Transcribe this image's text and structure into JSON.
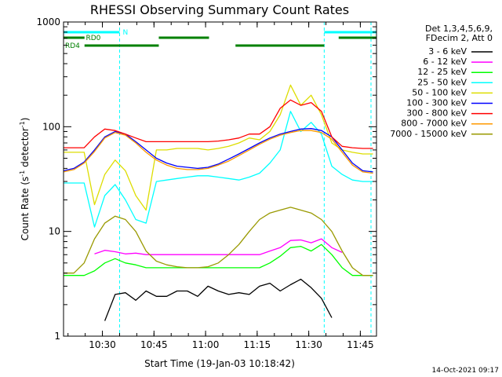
{
  "chart_data": {
    "type": "line",
    "title": "RHESSI Observing Summary Count Rates",
    "xlabel": "Start Time (19-Jan-03 10:18:42)",
    "ylabel_main": "Count Rate (s",
    "ylabel_sup": "-1",
    "ylabel_tail": " detector",
    "ylabel_sup2": "-1",
    "ylabel_end": ")",
    "yscale": "log",
    "ylim": [
      1,
      1000
    ],
    "xlim_minutes": [
      0,
      91
    ],
    "x_ticks": [
      {
        "label": "10:30",
        "value": 11.3
      },
      {
        "label": "10:45",
        "value": 26.3
      },
      {
        "label": "11:00",
        "value": 41.3
      },
      {
        "label": "11:15",
        "value": 56.3
      },
      {
        "label": "11:30",
        "value": 71.3
      },
      {
        "label": "11:45",
        "value": 86.3
      }
    ],
    "y_ticks": [
      {
        "label": "1",
        "value": 1
      },
      {
        "label": "10",
        "value": 10
      },
      {
        "label": "100",
        "value": 100
      },
      {
        "label": "1000",
        "value": 1000
      }
    ],
    "legend_header": [
      "Det 1,3,4,5,6,9,",
      "FDecim 2, Att 0"
    ],
    "series": [
      {
        "name": "3 - 6 keV",
        "color": "#000000",
        "x": [
          0,
          3,
          6,
          9,
          12,
          15,
          18,
          21,
          24,
          27,
          30,
          33,
          36,
          39,
          42,
          45,
          48,
          51,
          54,
          57,
          60,
          63,
          66,
          69,
          72,
          75,
          78,
          81,
          84,
          87,
          90
        ],
        "y": [
          null,
          null,
          null,
          null,
          1.4,
          2.5,
          2.6,
          2.2,
          2.7,
          2.4,
          2.4,
          2.7,
          2.7,
          2.4,
          3.0,
          2.7,
          2.5,
          2.6,
          2.5,
          3.0,
          3.2,
          2.7,
          3.1,
          3.5,
          2.9,
          2.3,
          1.5,
          null,
          null,
          null,
          null
        ]
      },
      {
        "name": "6 - 12 keV",
        "color": "#ff00ff",
        "x": [
          0,
          3,
          6,
          9,
          12,
          15,
          18,
          21,
          24,
          27,
          30,
          33,
          36,
          39,
          42,
          45,
          48,
          51,
          54,
          57,
          60,
          63,
          66,
          69,
          72,
          75,
          78,
          81,
          84,
          87,
          90
        ],
        "y": [
          null,
          null,
          null,
          6.1,
          6.6,
          6.4,
          6.1,
          6.2,
          6.0,
          6.0,
          6.0,
          6.0,
          6.0,
          6.0,
          6.0,
          6.0,
          6.0,
          6.0,
          6.0,
          6.0,
          6.5,
          7.0,
          8.2,
          8.3,
          7.8,
          8.5,
          7.0,
          6.3,
          null,
          null,
          null
        ]
      },
      {
        "name": "12 - 25 keV",
        "color": "#00ff00",
        "x": [
          0,
          3,
          6,
          9,
          12,
          15,
          18,
          21,
          24,
          27,
          30,
          33,
          36,
          39,
          42,
          45,
          48,
          51,
          54,
          57,
          60,
          63,
          66,
          69,
          72,
          75,
          78,
          81,
          84,
          87,
          90
        ],
        "y": [
          3.8,
          3.8,
          3.8,
          4.2,
          5.0,
          5.5,
          5.0,
          4.8,
          4.5,
          4.5,
          4.5,
          4.5,
          4.5,
          4.5,
          4.5,
          4.5,
          4.5,
          4.5,
          4.5,
          4.5,
          5.0,
          5.8,
          7.0,
          7.2,
          6.5,
          7.5,
          6.0,
          4.5,
          3.8,
          3.8,
          3.8
        ]
      },
      {
        "name": "25 - 50 keV",
        "color": "#00ffff",
        "x": [
          0,
          3,
          6,
          9,
          12,
          15,
          18,
          21,
          24,
          27,
          30,
          33,
          36,
          39,
          42,
          45,
          48,
          51,
          54,
          57,
          60,
          63,
          66,
          69,
          72,
          75,
          78,
          81,
          84,
          87,
          90
        ],
        "y": [
          29,
          29,
          29,
          11,
          22,
          28,
          20,
          13,
          12,
          30,
          31,
          32,
          33,
          34,
          34,
          33,
          32,
          31,
          33,
          36,
          45,
          60,
          140,
          90,
          110,
          85,
          42,
          35,
          31,
          30,
          30
        ]
      },
      {
        "name": "50 - 100 keV",
        "color": "#dddd00",
        "x": [
          0,
          3,
          6,
          9,
          12,
          15,
          18,
          21,
          24,
          27,
          30,
          33,
          36,
          39,
          42,
          45,
          48,
          51,
          54,
          57,
          60,
          63,
          66,
          69,
          72,
          75,
          78,
          81,
          84,
          87,
          90
        ],
        "y": [
          57,
          57,
          57,
          18,
          35,
          48,
          38,
          22,
          16,
          60,
          60,
          62,
          62,
          62,
          60,
          62,
          65,
          70,
          78,
          75,
          90,
          130,
          250,
          160,
          200,
          130,
          70,
          60,
          57,
          55,
          55
        ]
      },
      {
        "name": "100 - 300 keV",
        "color": "#0000ff",
        "x": [
          0,
          3,
          6,
          9,
          12,
          15,
          18,
          21,
          24,
          27,
          30,
          33,
          36,
          39,
          42,
          45,
          48,
          51,
          54,
          57,
          60,
          63,
          66,
          69,
          72,
          75,
          78,
          81,
          84,
          87,
          90
        ],
        "y": [
          38,
          40,
          46,
          60,
          80,
          90,
          85,
          72,
          60,
          50,
          45,
          42,
          41,
          40,
          41,
          44,
          49,
          55,
          62,
          70,
          78,
          85,
          90,
          95,
          96,
          92,
          80,
          60,
          45,
          38,
          37
        ]
      },
      {
        "name": "300 - 800 keV",
        "color": "#ff0000",
        "x": [
          0,
          3,
          6,
          9,
          12,
          15,
          18,
          21,
          24,
          27,
          30,
          33,
          36,
          39,
          42,
          45,
          48,
          51,
          54,
          57,
          60,
          63,
          66,
          69,
          72,
          75,
          78,
          81,
          84,
          87,
          90
        ],
        "y": [
          63,
          63,
          63,
          80,
          95,
          92,
          85,
          78,
          72,
          72,
          72,
          72,
          72,
          72,
          72,
          73,
          75,
          78,
          85,
          85,
          100,
          150,
          180,
          160,
          170,
          140,
          80,
          65,
          63,
          62,
          62
        ]
      },
      {
        "name": "800 - 7000 keV",
        "color": "#ff9900",
        "x": [
          0,
          3,
          6,
          9,
          12,
          15,
          18,
          21,
          24,
          27,
          30,
          33,
          36,
          39,
          42,
          45,
          48,
          51,
          54,
          57,
          60,
          63,
          66,
          69,
          72,
          75,
          78,
          81,
          84,
          87,
          90
        ],
        "y": [
          37,
          39,
          45,
          58,
          78,
          88,
          83,
          70,
          57,
          48,
          43,
          40,
          39,
          39,
          40,
          43,
          47,
          53,
          60,
          68,
          76,
          83,
          88,
          92,
          92,
          88,
          76,
          57,
          43,
          37,
          36
        ]
      },
      {
        "name": "7000 - 15000 keV",
        "color": "#999900",
        "x": [
          0,
          3,
          6,
          9,
          12,
          15,
          18,
          21,
          24,
          27,
          30,
          33,
          36,
          39,
          42,
          45,
          48,
          51,
          54,
          57,
          60,
          63,
          66,
          69,
          72,
          75,
          78,
          81,
          84,
          87,
          90
        ],
        "y": [
          4.0,
          4.0,
          5.0,
          8.5,
          12,
          14,
          13,
          10,
          6.5,
          5.2,
          4.8,
          4.6,
          4.5,
          4.5,
          4.6,
          5.0,
          6.0,
          7.5,
          10,
          13,
          15,
          16,
          17,
          16,
          15,
          13,
          10,
          6.5,
          4.5,
          3.8,
          3.8
        ]
      }
    ],
    "annotations": {
      "night_label": "N",
      "rd0_label": "RD0",
      "rd4_label": "RD4",
      "night_color": "#00ffff",
      "rd_color": "#008000",
      "night_segments": [
        [
          0,
          16.3
        ],
        [
          75.8,
          91
        ]
      ],
      "rd0_segments": [
        [
          0,
          6.1
        ],
        [
          27.7,
          42.3
        ],
        [
          80,
          91
        ]
      ],
      "rd4_segments": [
        [
          6.1,
          27.7
        ],
        [
          50,
          75.8
        ]
      ],
      "dashed_lines_x": [
        16.3,
        75.8,
        89.4
      ]
    },
    "footer_timestamp": "14-Oct-2021 09:17"
  }
}
